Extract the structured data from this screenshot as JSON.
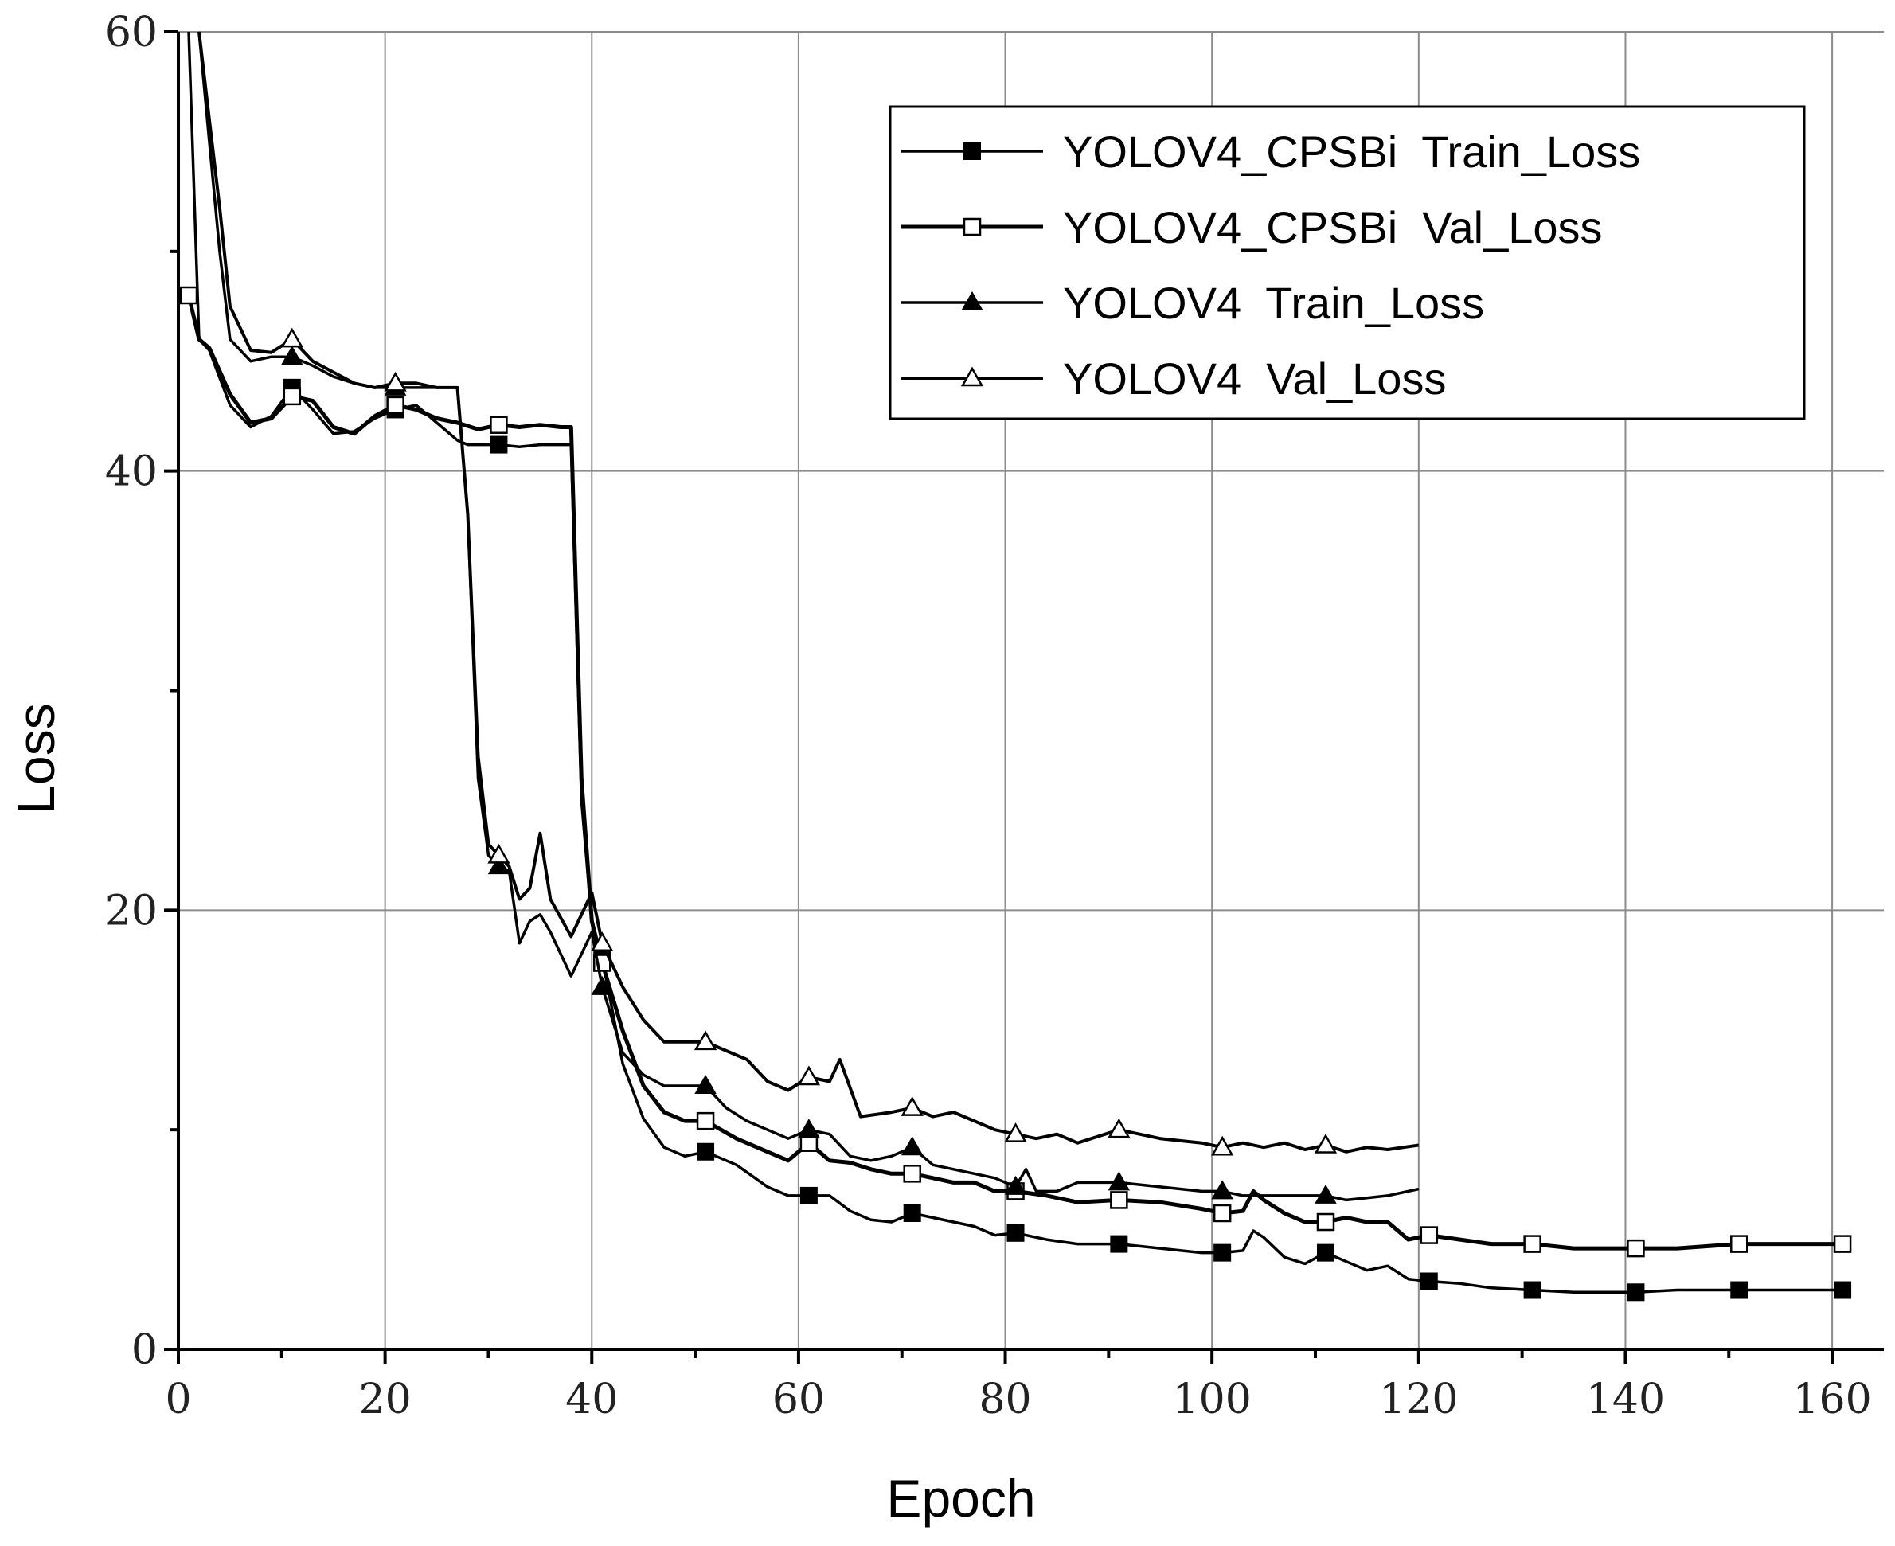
{
  "chart_data": {
    "type": "line",
    "title": "",
    "xlabel": "Epoch",
    "ylabel": "Loss",
    "xlim": [
      0,
      165
    ],
    "ylim": [
      0,
      60
    ],
    "xticks": [
      0,
      20,
      40,
      60,
      80,
      100,
      120,
      140,
      160
    ],
    "yticks": [
      0,
      20,
      40,
      60
    ],
    "grid": true,
    "legend_position": "top-right",
    "series": [
      {
        "name": "YOLOV4_CPSBi  Train_Loss",
        "marker": "filled-square",
        "x": [
          1,
          2,
          3,
          5,
          7,
          9,
          11,
          13,
          15,
          17,
          19,
          21,
          23,
          25,
          27,
          28,
          29,
          30,
          31,
          33,
          35,
          37,
          38,
          39,
          40,
          41,
          43,
          45,
          47,
          49,
          51,
          54,
          57,
          59,
          61,
          63,
          65,
          67,
          69,
          71,
          73,
          75,
          77,
          79,
          81,
          84,
          87,
          91,
          95,
          99,
          101,
          103,
          104,
          105,
          107,
          109,
          111,
          113,
          115,
          117,
          119,
          121,
          124,
          127,
          131,
          135,
          141,
          145,
          151,
          155,
          161
        ],
        "values": [
          60,
          46,
          45.5,
          43,
          42,
          42.5,
          43.8,
          42.8,
          41.7,
          41.8,
          42.4,
          42.8,
          43,
          42.2,
          41.4,
          41.2,
          41.2,
          41.2,
          41.2,
          41.1,
          41.2,
          41.2,
          41.2,
          25,
          19.5,
          17.8,
          13,
          10.5,
          9.2,
          8.8,
          9,
          8.4,
          7.4,
          7,
          7,
          7,
          6.3,
          5.9,
          5.8,
          6.2,
          6,
          5.8,
          5.6,
          5.2,
          5.3,
          5,
          4.8,
          4.8,
          4.6,
          4.4,
          4.4,
          4.5,
          5.4,
          5.1,
          4.2,
          3.9,
          4.4,
          4,
          3.6,
          3.8,
          3.2,
          3.1,
          3,
          2.8,
          2.7,
          2.6,
          2.6,
          2.7,
          2.7,
          2.7,
          2.7
        ]
      },
      {
        "name": "YOLOV4_CPSBi  Val_Loss",
        "marker": "open-square",
        "x": [
          1,
          2,
          3,
          5,
          7,
          9,
          11,
          13,
          15,
          17,
          19,
          21,
          23,
          25,
          27,
          29,
          31,
          33,
          35,
          37,
          38,
          39,
          40,
          41,
          43,
          45,
          47,
          49,
          51,
          54,
          57,
          59,
          61,
          63,
          65,
          67,
          69,
          71,
          73,
          75,
          77,
          79,
          81,
          84,
          87,
          91,
          95,
          99,
          101,
          103,
          104,
          105,
          107,
          109,
          111,
          113,
          115,
          117,
          119,
          121,
          124,
          127,
          131,
          135,
          141,
          145,
          151,
          155,
          161
        ],
        "values": [
          48,
          46,
          45.6,
          43.5,
          42.2,
          42.4,
          43.4,
          43.2,
          42,
          41.7,
          42.5,
          43,
          42.8,
          42.4,
          42.2,
          41.9,
          42.1,
          42,
          42.1,
          42,
          42,
          26,
          19.5,
          17.6,
          14.5,
          12,
          10.8,
          10.4,
          10.4,
          9.6,
          9,
          8.6,
          9.4,
          8.6,
          8.5,
          8.2,
          8,
          8,
          7.8,
          7.6,
          7.6,
          7.2,
          7.2,
          7,
          6.7,
          6.8,
          6.7,
          6.4,
          6.2,
          6.3,
          7.2,
          6.8,
          6.2,
          5.8,
          5.8,
          6,
          5.8,
          5.8,
          5,
          5.2,
          5,
          4.8,
          4.8,
          4.6,
          4.6,
          4.6,
          4.8,
          4.8,
          4.8
        ]
      },
      {
        "name": "YOLOV4  Train_Loss",
        "marker": "filled-triangle",
        "x": [
          2,
          3,
          4,
          5,
          7,
          9,
          11,
          13,
          15,
          17,
          19,
          21,
          23,
          25,
          27,
          28,
          29,
          30,
          31,
          32,
          33,
          34,
          35,
          36,
          38,
          40,
          41,
          43,
          45,
          47,
          49,
          51,
          53,
          55,
          57,
          59,
          61,
          63,
          65,
          67,
          69,
          71,
          73,
          75,
          77,
          79,
          81,
          82,
          83,
          85,
          87,
          91,
          95,
          99,
          101,
          103,
          105,
          107,
          109,
          111,
          113,
          115,
          117,
          120
        ],
        "values": [
          60,
          55,
          50,
          46,
          45,
          45.2,
          45.2,
          44.8,
          44.3,
          44,
          43.8,
          43.8,
          43.8,
          43.8,
          43.8,
          38,
          26,
          22.5,
          22,
          21.8,
          18.5,
          19.5,
          19.8,
          19,
          17,
          19,
          16.5,
          13.5,
          12.5,
          12,
          12,
          12,
          11,
          10.4,
          10,
          9.6,
          10,
          9.8,
          8.8,
          8.6,
          8.8,
          9.2,
          8.4,
          8.2,
          8,
          7.8,
          7.4,
          8.2,
          7.2,
          7.2,
          7.6,
          7.6,
          7.4,
          7.2,
          7.2,
          7,
          7,
          7,
          7,
          7,
          6.8,
          6.9,
          7,
          7.3
        ]
      },
      {
        "name": "YOLOV4  Val_Loss",
        "marker": "open-triangle",
        "x": [
          2,
          3,
          4,
          5,
          7,
          9,
          11,
          13,
          15,
          17,
          19,
          21,
          23,
          25,
          27,
          28,
          29,
          30,
          31,
          32,
          33,
          34,
          35,
          36,
          38,
          40,
          41,
          43,
          45,
          47,
          49,
          51,
          53,
          55,
          57,
          59,
          61,
          63,
          64,
          66,
          69,
          71,
          73,
          75,
          77,
          79,
          81,
          83,
          85,
          87,
          91,
          95,
          99,
          101,
          103,
          105,
          107,
          109,
          111,
          113,
          115,
          117,
          120
        ],
        "values": [
          60,
          56,
          52,
          47.5,
          45.5,
          45.4,
          46,
          45,
          44.5,
          44,
          43.8,
          44,
          44,
          43.8,
          43.8,
          38,
          27,
          23,
          22.5,
          22,
          20.5,
          21,
          23.5,
          20.5,
          18.8,
          20.8,
          18.5,
          16.5,
          15,
          14,
          14,
          14,
          13.6,
          13.2,
          12.2,
          11.8,
          12.4,
          12.2,
          13.2,
          10.6,
          10.8,
          11,
          10.6,
          10.8,
          10.4,
          10,
          9.8,
          9.6,
          9.8,
          9.4,
          10,
          9.6,
          9.4,
          9.2,
          9.4,
          9.2,
          9.4,
          9.1,
          9.3,
          9,
          9.2,
          9.1,
          9.3
        ]
      }
    ]
  }
}
